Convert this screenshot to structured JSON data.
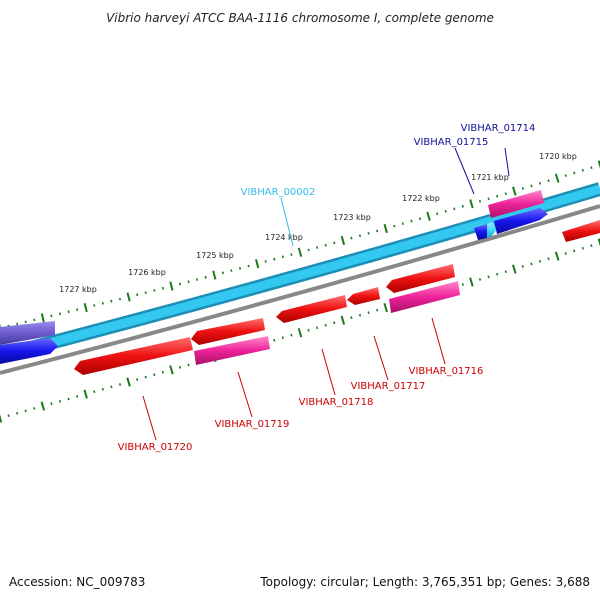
{
  "title": "Vibrio harveyi ATCC BAA-1116 chromosome I, complete genome",
  "footer": {
    "accession": "Accession: NC_009783",
    "stats": "Topology: circular; Length: 3,765,351 bp; Genes: 3,688"
  },
  "colors": {
    "ruler_ticks": "#1a7a1a",
    "backbone_cyan": "#33c8f0",
    "backbone_edge": "#1d8eb5",
    "backbone_grey": "#888888",
    "forward_gene": "#1515ee",
    "ncrna": "#40d8ff",
    "reverse_gene": "#ee1111",
    "pseudo_gene": "#ee2299",
    "slate_gene": "#6a5acd",
    "label_blue": "#111199",
    "label_cyan": "#33bbee",
    "label_red": "#cc0000"
  },
  "ruler": {
    "tick_labels": [
      "1720 kbp",
      "1721 kbp",
      "1722 kbp",
      "1723 kbp",
      "1724 kbp",
      "1725 kbp",
      "1726 kbp",
      "1727 kbp"
    ]
  },
  "genes": {
    "labels": [
      {
        "name": "VIBHAR_01714",
        "color": "#111199"
      },
      {
        "name": "VIBHAR_01715",
        "color": "#111199"
      },
      {
        "name": "VIBHAR_00002",
        "color": "#33bbee"
      },
      {
        "name": "VIBHAR_01716",
        "color": "#cc0000"
      },
      {
        "name": "VIBHAR_01717",
        "color": "#cc0000"
      },
      {
        "name": "VIBHAR_01718",
        "color": "#cc0000"
      },
      {
        "name": "VIBHAR_01719",
        "color": "#cc0000"
      },
      {
        "name": "VIBHAR_01720",
        "color": "#cc0000"
      }
    ]
  }
}
